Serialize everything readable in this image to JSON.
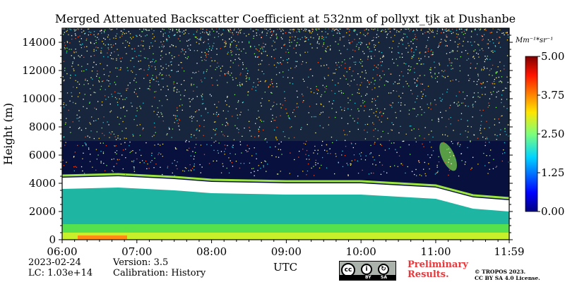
{
  "chart_data": {
    "type": "heatmap",
    "title": "Merged Attenuated Backscatter Coefficient at 532nm of pollyxt_tjk at Dushanbe",
    "xlabel": "UTC",
    "ylabel": "Height (m)",
    "x_ticks": [
      "06:00",
      "07:00",
      "08:00",
      "09:00",
      "10:00",
      "11:00",
      "11:59"
    ],
    "y_ticks": [
      0,
      2000,
      4000,
      6000,
      8000,
      10000,
      12000,
      14000
    ],
    "xlim": [
      "06:00",
      "11:59"
    ],
    "ylim": [
      0,
      15000
    ],
    "colorbar": {
      "unit": "Mm⁻¹*sr⁻¹",
      "ticks": [
        "0.00",
        "1.25",
        "2.50",
        "3.75",
        "5.00"
      ],
      "range": [
        0,
        5
      ],
      "colormap": "jet"
    },
    "features": {
      "cloud_layer_top_m": [
        4400,
        4500,
        4300,
        4100,
        4000,
        4000,
        3700,
        3000,
        2800
      ],
      "cloud_layer_top_times": [
        "06:00",
        "06:45",
        "07:30",
        "08:00",
        "09:00",
        "10:00",
        "11:00",
        "11:30",
        "11:59"
      ],
      "boundary_layer_top_m": 3600
    }
  },
  "footer": {
    "date": "2023-02-24",
    "lc": "LC: 1.03e+14",
    "version": "Version: 3.5",
    "calibration": "Calibration: History",
    "preliminary_line1": "Preliminary",
    "preliminary_line2": "Results.",
    "copyright_line1": "© TROPOS 2023.",
    "copyright_line2": "CC BY SA 4.0 License.",
    "license_badge": {
      "icon": "cc-by-sa-icon",
      "by": "BY",
      "sa": "SA"
    }
  }
}
